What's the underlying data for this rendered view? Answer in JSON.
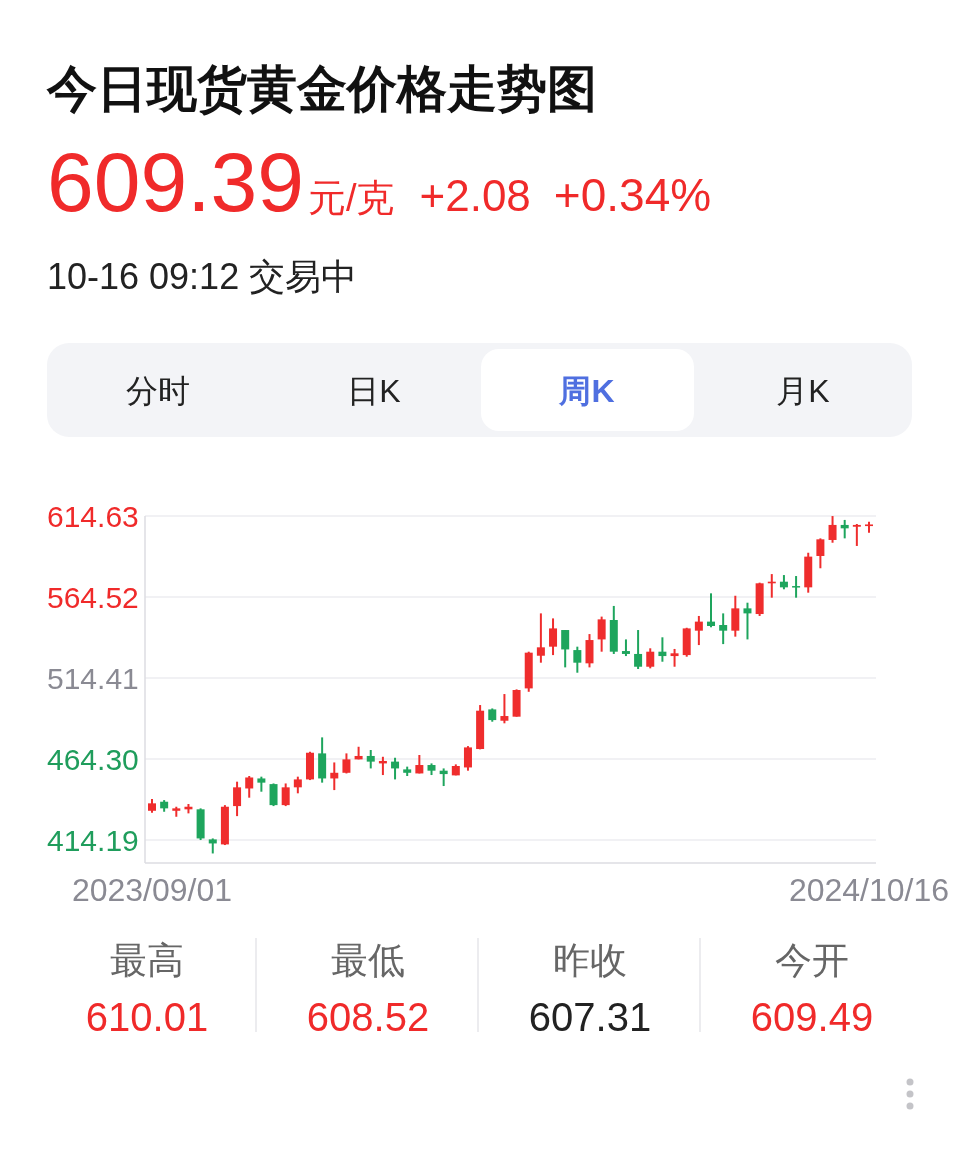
{
  "chart_data": {
    "type": "candlestick",
    "title": "今日现货黄金价格走势图",
    "subtitle": "10-16 09:12 交易中",
    "annotations": [
      "609.39",
      "元/克",
      "+2.08",
      "+0.34%",
      "分时",
      "日K",
      "周K",
      "月K",
      "最高",
      "610.01",
      "最低",
      "608.52",
      "昨收",
      "607.31",
      "今开",
      "609.49"
    ],
    "categories": [
      "2023/09/01",
      null,
      null,
      null,
      null,
      null,
      null,
      null,
      null,
      null,
      null,
      null,
      null,
      null,
      null,
      null,
      null,
      null,
      null,
      null,
      null,
      null,
      null,
      null,
      null,
      null,
      null,
      null,
      null,
      null,
      null,
      null,
      null,
      null,
      null,
      null,
      null,
      null,
      null,
      null,
      null,
      null,
      null,
      null,
      null,
      null,
      null,
      null,
      null,
      null,
      null,
      null,
      null,
      null,
      null,
      null,
      null,
      null,
      null,
      "2024/10/16"
    ],
    "ohlc": [
      [
        432.3,
        439.6,
        431.1,
        436.9
      ],
      [
        437.9,
        438.9,
        431.7,
        433.8
      ],
      [
        432.3,
        434.8,
        428.6,
        433.8
      ],
      [
        433.2,
        436.5,
        430.7,
        434.8
      ],
      [
        433.2,
        433.8,
        414.2,
        415.2
      ],
      [
        414.6,
        415.2,
        405.9,
        412.1
      ],
      [
        411.5,
        435.8,
        411.1,
        434.8
      ],
      [
        435.2,
        450.3,
        429.0,
        446.8
      ],
      [
        446.1,
        453.8,
        440.4,
        452.9
      ],
      [
        452.3,
        453.4,
        444.1,
        449.7
      ],
      [
        448.8,
        449.2,
        435.2,
        435.8
      ],
      [
        435.8,
        449.2,
        435.2,
        446.8
      ],
      [
        446.8,
        453.4,
        443.1,
        451.7
      ],
      [
        451.7,
        468.8,
        451.3,
        468.2
      ],
      [
        467.8,
        477.7,
        449.7,
        452.3
      ],
      [
        452.3,
        462.2,
        445.1,
        455.8
      ],
      [
        455.8,
        467.8,
        455.4,
        464.1
      ],
      [
        464.1,
        471.9,
        464.1,
        466.2
      ],
      [
        466.2,
        469.9,
        458.5,
        462.7
      ],
      [
        461.6,
        465.7,
        454.4,
        463.1
      ],
      [
        462.7,
        465.1,
        451.7,
        458.5
      ],
      [
        457.9,
        459.6,
        453.8,
        455.8
      ],
      [
        455.4,
        466.8,
        455.4,
        460.6
      ],
      [
        460.6,
        461.6,
        454.4,
        457.1
      ],
      [
        457.1,
        458.5,
        447.6,
        455.0
      ],
      [
        454.2,
        461.0,
        454.2,
        460.0
      ],
      [
        459.1,
        472.3,
        457.1,
        471.5
      ],
      [
        470.5,
        497.7,
        470.3,
        494.2
      ],
      [
        495.0,
        495.6,
        487.4,
        488.4
      ],
      [
        488.0,
        504.5,
        486.4,
        490.9
      ],
      [
        490.5,
        507.4,
        490.5,
        507.0
      ],
      [
        508.0,
        530.7,
        505.9,
        530.1
      ],
      [
        528.2,
        554.4,
        523.9,
        533.4
      ],
      [
        533.8,
        551.3,
        528.6,
        545.1
      ],
      [
        544.1,
        544.1,
        521.0,
        532.1
      ],
      [
        531.7,
        533.8,
        517.7,
        523.9
      ],
      [
        523.5,
        541.6,
        521.0,
        537.9
      ],
      [
        538.3,
        552.4,
        530.7,
        550.7
      ],
      [
        550.3,
        559.0,
        529.3,
        530.7
      ],
      [
        531.1,
        538.3,
        528.0,
        529.3
      ],
      [
        529.3,
        544.1,
        520.0,
        521.4
      ],
      [
        521.4,
        532.8,
        520.4,
        530.7
      ],
      [
        530.7,
        539.6,
        524.5,
        528.0
      ],
      [
        528.0,
        532.4,
        521.4,
        529.7
      ],
      [
        528.6,
        545.5,
        527.6,
        545.1
      ],
      [
        543.7,
        552.8,
        534.8,
        549.3
      ],
      [
        549.3,
        566.8,
        545.8,
        546.6
      ],
      [
        547.2,
        554.4,
        535.4,
        543.7
      ],
      [
        543.7,
        565.3,
        540.0,
        557.5
      ],
      [
        557.5,
        561.0,
        538.3,
        554.4
      ],
      [
        554.0,
        573.4,
        552.8,
        573.0
      ],
      [
        573.0,
        578.7,
        564.1,
        574.0
      ],
      [
        574.0,
        578.1,
        569.3,
        570.5
      ],
      [
        571.3,
        577.5,
        564.1,
        570.5
      ],
      [
        570.5,
        591.9,
        567.2,
        589.5
      ],
      [
        589.9,
        600.8,
        582.3,
        600.2
      ],
      [
        599.8,
        614.6,
        598.1,
        609.1
      ],
      [
        609.1,
        612.2,
        600.8,
        607.0
      ],
      [
        608.0,
        609.7,
        596.1,
        609.1
      ],
      [
        608.4,
        611.1,
        604.3,
        609.4
      ]
    ],
    "colors": [
      "#ef2d2d",
      "#1ea55d",
      "#ef2d2d",
      "#ef2d2d",
      "#1ea55d",
      "#1ea55d",
      "#ef2d2d",
      "#ef2d2d",
      "#ef2d2d",
      "#1ea55d",
      "#1ea55d",
      "#ef2d2d",
      "#ef2d2d",
      "#ef2d2d",
      "#1ea55d",
      "#ef2d2d",
      "#ef2d2d",
      "#ef2d2d",
      "#1ea55d",
      "#ef2d2d",
      "#1ea55d",
      "#1ea55d",
      "#ef2d2d",
      "#1ea55d",
      "#1ea55d",
      "#ef2d2d",
      "#ef2d2d",
      "#ef2d2d",
      "#1ea55d",
      "#ef2d2d",
      "#ef2d2d",
      "#ef2d2d",
      "#ef2d2d",
      "#ef2d2d",
      "#1ea55d",
      "#1ea55d",
      "#ef2d2d",
      "#ef2d2d",
      "#1ea55d",
      "#1ea55d",
      "#1ea55d",
      "#ef2d2d",
      "#1ea55d",
      "#ef2d2d",
      "#ef2d2d",
      "#ef2d2d",
      "#1ea55d",
      "#1ea55d",
      "#ef2d2d",
      "#1ea55d",
      "#ef2d2d",
      "#ef2d2d",
      "#1ea55d",
      "#1ea55d",
      "#ef2d2d",
      "#ef2d2d",
      "#ef2d2d",
      "#1ea55d",
      "#ef2d2d",
      "#ef2d2d"
    ],
    "ylim": [
      400,
      614.63
    ],
    "yticks": [
      414.19,
      {
        "value": 464.3,
        "label": "464.30"
      },
      514.41,
      564.52,
      614.63
    ],
    "grid": "y"
  }
}
